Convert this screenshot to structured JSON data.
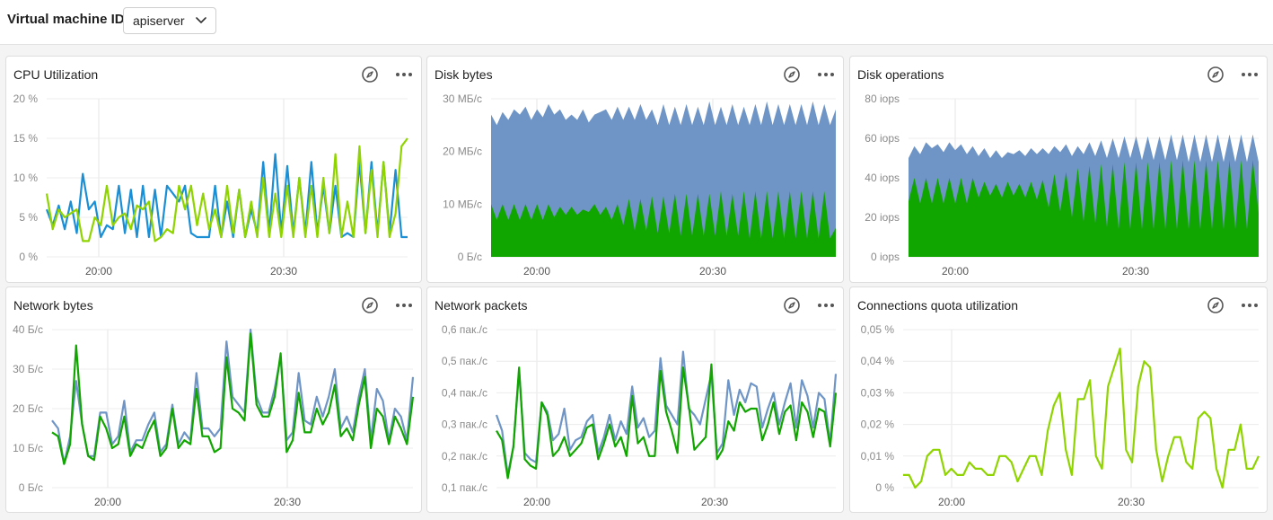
{
  "header": {
    "vm_label": "Virtual machine ID",
    "vm_select_value": "apiserver"
  },
  "icons": {
    "compass": "compass-icon",
    "more": "more-dots-icon",
    "chevron": "chevron-down-icon"
  },
  "colors": {
    "green": "#11a500",
    "lime": "#8fd400",
    "blue": "#1a8fd6",
    "steel": "#6f95c6"
  },
  "x_ticks": [
    "20:00",
    "20:30"
  ],
  "chart_data": [
    {
      "id": "cpu",
      "title": "CPU Utilization",
      "type": "line",
      "y_ticks": [
        "0 %",
        "5 %",
        "10 %",
        "15 %",
        "20 %"
      ],
      "ylim": [
        0,
        20
      ],
      "series": [
        {
          "color": "#1a8fd6",
          "values": [
            6,
            4,
            6.5,
            3.5,
            7,
            3,
            10.5,
            6,
            7,
            2.5,
            4,
            3.5,
            9,
            3,
            8.5,
            2.5,
            9,
            2.5,
            8.5,
            2.5,
            9,
            8,
            7,
            9,
            3,
            2.5,
            2.5,
            2.5,
            9,
            2.5,
            7,
            2.5,
            8.5,
            2.5,
            6,
            3,
            12,
            3,
            13,
            3,
            11.5,
            3,
            10,
            3,
            12,
            3,
            9,
            3,
            9,
            2.5,
            3,
            2.5,
            12,
            3,
            12,
            3,
            12,
            3,
            11,
            2.5,
            2.5
          ]
        },
        {
          "color": "#8fd400",
          "values": [
            8,
            3.5,
            6,
            5,
            5.5,
            6,
            2,
            2,
            5,
            4,
            9,
            4,
            5,
            5.5,
            3.5,
            6.5,
            6,
            7,
            2,
            2.5,
            3.5,
            3,
            9,
            6,
            9,
            4,
            8,
            3.5,
            6,
            2.5,
            9,
            3,
            8.5,
            2.5,
            7,
            2.5,
            10,
            2.5,
            8,
            2.5,
            9,
            2.5,
            10,
            2.5,
            9,
            2.5,
            10,
            3,
            13,
            2.5,
            7,
            2.5,
            14,
            3,
            11,
            2.5,
            12,
            2.5,
            5.5,
            14,
            15
          ]
        }
      ]
    },
    {
      "id": "disk-bytes",
      "title": "Disk bytes",
      "type": "area",
      "y_ticks": [
        "0 Б/с",
        "10 МБ/с",
        "20 МБ/с",
        "30 МБ/с"
      ],
      "ylim": [
        0,
        30
      ],
      "series": [
        {
          "color": "#6f95c6",
          "values": [
            27,
            25,
            27.5,
            26,
            28,
            27,
            28.5,
            26,
            28,
            26.5,
            29,
            27,
            28,
            26,
            27,
            26,
            28,
            25.5,
            27,
            27.5,
            28,
            26,
            28.5,
            26,
            28.5,
            26,
            29,
            26,
            28,
            25,
            29,
            25,
            28.5,
            25,
            29,
            25,
            28.5,
            25,
            29.5,
            25,
            28.5,
            25,
            29,
            25,
            28.5,
            25,
            29,
            25,
            29.5,
            25,
            29,
            25,
            29,
            25,
            29,
            25,
            29.5,
            25,
            29,
            25,
            28
          ]
        },
        {
          "color": "#11a500",
          "values": [
            10,
            7,
            10,
            7,
            10,
            7,
            10,
            7,
            10,
            7,
            10,
            7.5,
            9.5,
            8,
            9.5,
            8,
            9,
            8.5,
            10,
            8,
            9.5,
            7,
            10,
            6,
            11,
            5,
            11,
            5,
            11.5,
            4.5,
            11.5,
            4.5,
            12,
            4,
            12,
            4,
            12,
            4,
            12,
            4,
            12.5,
            4,
            12,
            4,
            12.5,
            3.5,
            12.5,
            3.5,
            12.5,
            3.5,
            12.5,
            3.5,
            12.5,
            3.5,
            12.5,
            3.5,
            12.5,
            3.5,
            12.5,
            3.5,
            5.5
          ]
        }
      ]
    },
    {
      "id": "disk-ops",
      "title": "Disk operations",
      "type": "area",
      "y_ticks": [
        "0 iops",
        "20 iops",
        "40 iops",
        "60 iops",
        "80 iops"
      ],
      "ylim": [
        0,
        80
      ],
      "series": [
        {
          "color": "#6f95c6",
          "values": [
            50,
            56,
            52,
            58,
            55,
            57,
            53,
            58,
            54,
            57,
            52,
            56,
            51,
            55,
            50,
            54,
            50,
            53,
            52,
            54,
            51,
            55,
            52,
            55,
            52,
            56,
            53,
            57,
            51,
            56,
            52,
            58,
            51,
            59,
            50,
            60,
            50,
            61,
            50,
            61,
            49,
            61,
            49,
            61,
            49,
            62,
            49,
            62,
            48,
            62,
            48,
            62,
            48,
            62,
            48,
            62,
            48,
            62,
            48,
            62,
            48
          ]
        },
        {
          "color": "#11a500",
          "values": [
            28,
            40,
            27,
            40,
            27,
            40,
            27,
            40,
            27,
            40,
            27,
            40,
            30,
            38,
            31,
            37,
            30,
            38,
            31,
            37,
            30,
            38,
            29,
            39,
            25,
            42,
            23,
            43,
            20,
            45,
            18,
            46,
            17,
            47,
            15,
            47,
            14,
            48,
            14,
            48,
            14,
            48,
            14,
            48,
            14,
            49,
            14,
            49,
            14,
            49,
            14,
            49,
            14,
            49,
            14,
            49,
            14,
            49,
            14,
            49,
            22
          ]
        }
      ]
    },
    {
      "id": "net-bytes",
      "title": "Network bytes",
      "type": "line",
      "y_ticks": [
        "0 Б/с",
        "10 Б/с",
        "20 Б/с",
        "30 Б/с",
        "40 Б/с"
      ],
      "ylim": [
        0,
        40
      ],
      "series": [
        {
          "color": "#6f95c6",
          "values": [
            17,
            15,
            6,
            13,
            27,
            16,
            8,
            8,
            19,
            19,
            11,
            13,
            22,
            9,
            12,
            12,
            16,
            19,
            9,
            11,
            21,
            11,
            14,
            12,
            29,
            15,
            15,
            13,
            15,
            37,
            23,
            21,
            19,
            40,
            23,
            19,
            19,
            25,
            33,
            12,
            14,
            29,
            17,
            16,
            23,
            18,
            23,
            30,
            15,
            18,
            14,
            23,
            30,
            12,
            25,
            22,
            12,
            20,
            18,
            12,
            28
          ]
        },
        {
          "color": "#11a500",
          "values": [
            14,
            13,
            6,
            11,
            36,
            16,
            8,
            7,
            18,
            15,
            10,
            11,
            18,
            8,
            11,
            10,
            14,
            17,
            8,
            10,
            20,
            10,
            12,
            11,
            25,
            13,
            13,
            9,
            10,
            33,
            20,
            19,
            17,
            39,
            21,
            18,
            18,
            23,
            34,
            9,
            12,
            24,
            14,
            14,
            20,
            16,
            19,
            26,
            13,
            15,
            12,
            21,
            28,
            10,
            20,
            18,
            11,
            18,
            15,
            11,
            23
          ]
        }
      ]
    },
    {
      "id": "net-packets",
      "title": "Network packets",
      "type": "line",
      "y_ticks": [
        "0,1 пак./с",
        "0,2 пак./с",
        "0,3 пак./с",
        "0,4 пак./с",
        "0,5 пак./с",
        "0,6 пак./с"
      ],
      "ylim": [
        0.1,
        0.6
      ],
      "series": [
        {
          "color": "#6f95c6",
          "values": [
            0.33,
            0.28,
            0.14,
            0.23,
            0.47,
            0.21,
            0.19,
            0.18,
            0.37,
            0.34,
            0.25,
            0.27,
            0.35,
            0.22,
            0.25,
            0.26,
            0.31,
            0.33,
            0.21,
            0.26,
            0.33,
            0.25,
            0.31,
            0.27,
            0.42,
            0.29,
            0.32,
            0.26,
            0.28,
            0.51,
            0.36,
            0.33,
            0.3,
            0.53,
            0.35,
            0.33,
            0.3,
            0.38,
            0.46,
            0.21,
            0.24,
            0.44,
            0.33,
            0.41,
            0.37,
            0.43,
            0.42,
            0.29,
            0.35,
            0.4,
            0.3,
            0.37,
            0.43,
            0.29,
            0.44,
            0.39,
            0.29,
            0.4,
            0.38,
            0.24,
            0.46
          ]
        },
        {
          "color": "#11a500",
          "values": [
            0.28,
            0.25,
            0.13,
            0.23,
            0.48,
            0.19,
            0.17,
            0.16,
            0.37,
            0.33,
            0.2,
            0.22,
            0.26,
            0.2,
            0.22,
            0.24,
            0.29,
            0.3,
            0.19,
            0.24,
            0.3,
            0.23,
            0.26,
            0.2,
            0.39,
            0.24,
            0.26,
            0.2,
            0.2,
            0.47,
            0.34,
            0.28,
            0.21,
            0.48,
            0.36,
            0.22,
            0.24,
            0.26,
            0.49,
            0.19,
            0.22,
            0.31,
            0.28,
            0.37,
            0.34,
            0.35,
            0.35,
            0.25,
            0.3,
            0.37,
            0.27,
            0.34,
            0.36,
            0.25,
            0.37,
            0.34,
            0.26,
            0.35,
            0.34,
            0.23,
            0.4
          ]
        }
      ]
    },
    {
      "id": "conn-quota",
      "title": "Connections quota utilization",
      "type": "line",
      "y_ticks": [
        "0 %",
        "0,01 %",
        "0,02 %",
        "0,03 %",
        "0,04 %",
        "0,05 %"
      ],
      "ylim": [
        0,
        0.05
      ],
      "series": [
        {
          "color": "#8fd400",
          "values": [
            0.004,
            0.004,
            0,
            0.002,
            0.01,
            0.012,
            0.012,
            0.004,
            0.006,
            0.004,
            0.004,
            0.008,
            0.006,
            0.006,
            0.004,
            0.004,
            0.01,
            0.01,
            0.008,
            0.002,
            0.006,
            0.01,
            0.01,
            0.004,
            0.018,
            0.026,
            0.03,
            0.012,
            0.004,
            0.028,
            0.028,
            0.034,
            0.01,
            0.006,
            0.032,
            0.038,
            0.044,
            0.012,
            0.008,
            0.032,
            0.04,
            0.038,
            0.012,
            0.002,
            0.01,
            0.016,
            0.016,
            0.008,
            0.006,
            0.022,
            0.024,
            0.022,
            0.006,
            0,
            0.012,
            0.012,
            0.02,
            0.006,
            0.006,
            0.01
          ]
        }
      ]
    }
  ]
}
